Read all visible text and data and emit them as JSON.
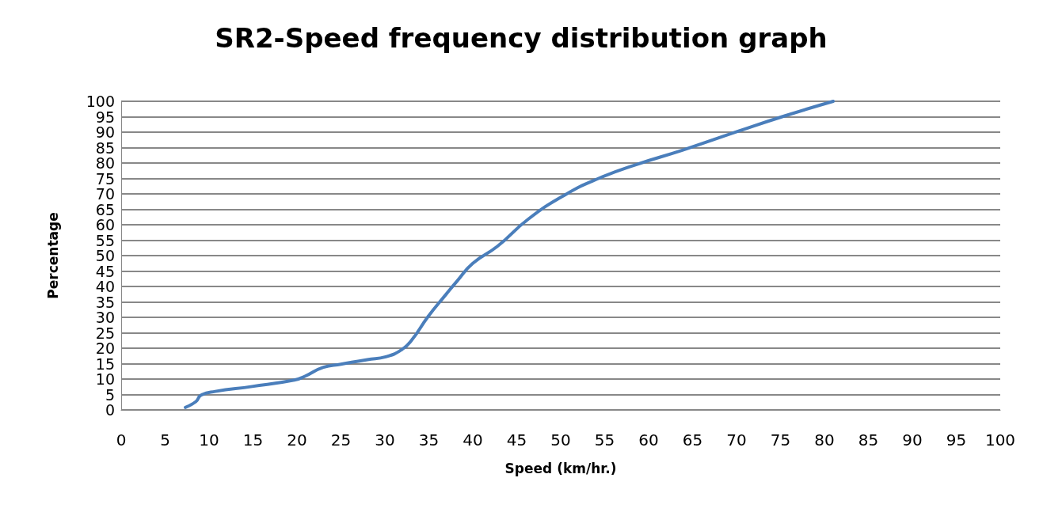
{
  "chart_data": {
    "type": "line",
    "title": "SR2-Speed frequency distribution graph",
    "xlabel": "Speed (km/hr.)",
    "ylabel": "Percentage",
    "x": [
      7.3,
      8.5,
      9.1,
      10.7,
      14.9,
      19.7,
      20.9,
      23,
      25,
      28,
      30.1,
      31.9,
      33.1,
      34.9,
      37,
      38.2,
      40,
      42.8,
      46.3,
      50.5,
      54.3,
      58.5,
      63.9,
      70.3,
      75.4,
      81
    ],
    "series": [
      {
        "color": "#4a7ebb",
        "values": [
          0.8,
          2.7,
          4.8,
          6,
          7.6,
          9.7,
          10.9,
          13.8,
          14.8,
          16.3,
          17.2,
          19.5,
          22.8,
          30.2,
          37.6,
          41.7,
          47.5,
          53,
          61.8,
          69.7,
          75,
          79.4,
          84.2,
          90.4,
          95.2,
          100
        ]
      }
    ],
    "xlim": [
      0,
      100
    ],
    "xticks": [
      0,
      5,
      10,
      15,
      20,
      25,
      30,
      35,
      40,
      45,
      50,
      55,
      60,
      65,
      70,
      75,
      80,
      85,
      90,
      95,
      100
    ],
    "ylim": [
      0,
      100
    ],
    "yticks": [
      0,
      5,
      10,
      15,
      20,
      25,
      30,
      35,
      40,
      45,
      50,
      55,
      60,
      65,
      70,
      75,
      80,
      85,
      90,
      95,
      100
    ],
    "grid": "y",
    "marker": "none",
    "line_style": "solid"
  }
}
